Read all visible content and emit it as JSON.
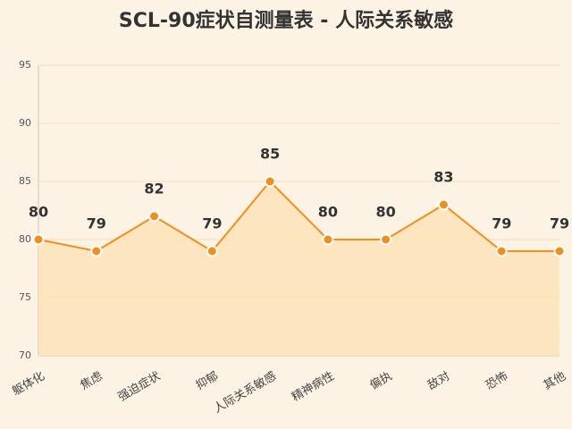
{
  "chart_data": {
    "type": "line",
    "title": "SCL-90症状自测量表 - 人际关系敏感",
    "categories": [
      "躯体化",
      "焦虑",
      "强迫症状",
      "抑郁",
      "人际关系敏感",
      "精神病性",
      "偏执",
      "敌对",
      "恐怖",
      "其他"
    ],
    "values": [
      80,
      79,
      82,
      79,
      85,
      80,
      80,
      83,
      79,
      79
    ],
    "color": "#ef8f1c",
    "area": true,
    "area_color": "#fde2b8",
    "ylim": [
      70,
      95
    ],
    "yticks": [
      70,
      75,
      80,
      85,
      90,
      95
    ],
    "grid": true
  }
}
